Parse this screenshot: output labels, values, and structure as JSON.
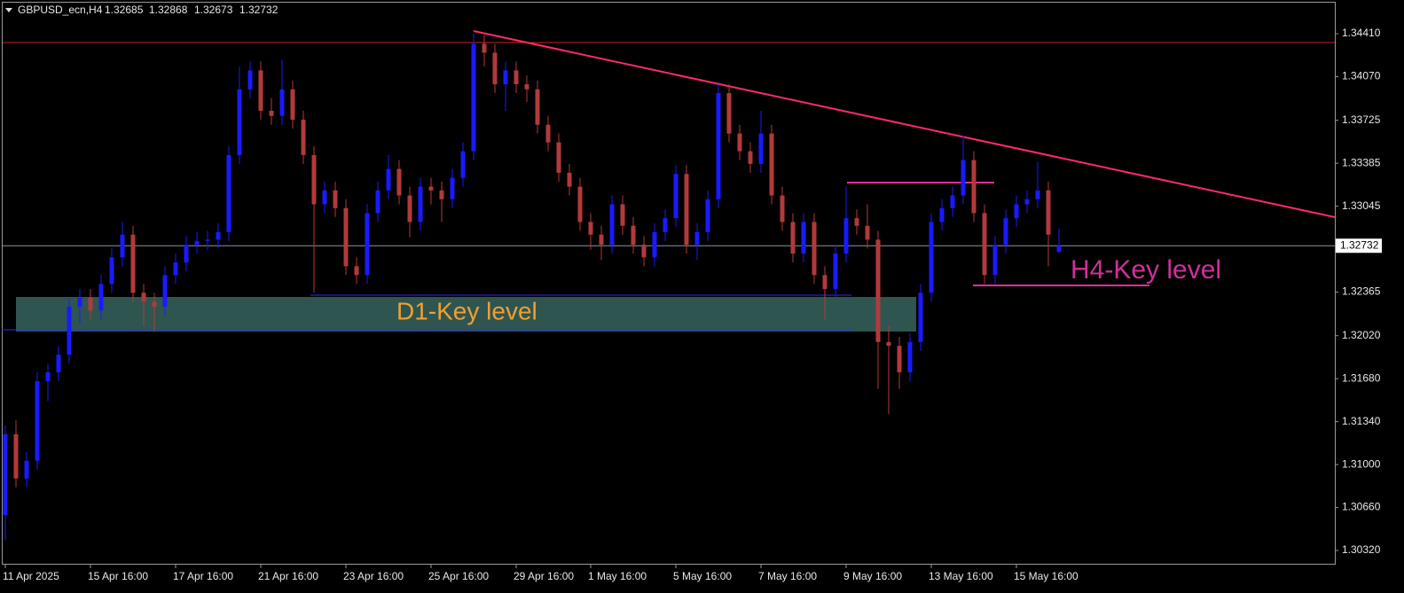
{
  "chart_data": {
    "type": "candlestick",
    "title": "GBPUSD_ecn,H4",
    "header_values": [
      1.32685,
      1.32868,
      1.32673,
      1.32732
    ],
    "current_price": {
      "value": 1.32732,
      "label": "1.32732"
    },
    "annotations": [
      "D1-Key level",
      "H4-Key level"
    ],
    "up_color": "#1a1aff",
    "down_color": "#b23a3a",
    "ylim": [
      1.30208,
      1.34663
    ],
    "yticks": [
      {
        "value": 1.3441,
        "label": "1.34410"
      },
      {
        "value": 1.3407,
        "label": "1.34070"
      },
      1.33725,
      1.33385,
      1.33045,
      1.32365,
      {
        "value": 1.3202,
        "label": "1.32020"
      },
      {
        "value": 1.3168,
        "label": "1.31680"
      },
      {
        "value": 1.3134,
        "label": "1.31340"
      },
      {
        "value": 1.31,
        "label": "1.31000"
      },
      {
        "value": 1.3066,
        "label": "1.30660"
      },
      {
        "value": 1.3032,
        "label": "1.30320"
      }
    ],
    "categories": [
      "11 Apr 2025",
      null,
      null,
      null,
      null,
      null,
      null,
      null,
      "15 Apr 16:00",
      null,
      null,
      null,
      null,
      null,
      null,
      null,
      "17 Apr 16:00",
      null,
      null,
      null,
      null,
      null,
      null,
      null,
      "21 Apr 16:00",
      null,
      null,
      null,
      null,
      null,
      null,
      null,
      "23 Apr 16:00",
      null,
      null,
      null,
      null,
      null,
      null,
      null,
      "25 Apr 16:00",
      null,
      null,
      null,
      null,
      null,
      null,
      null,
      "29 Apr 16:00",
      null,
      null,
      null,
      null,
      null,
      null,
      "1 May 16:00",
      null,
      null,
      null,
      null,
      null,
      null,
      null,
      "5 May 16:00",
      null,
      null,
      null,
      null,
      null,
      null,
      null,
      "7 May 16:00",
      null,
      null,
      null,
      null,
      null,
      null,
      null,
      "9 May 16:00",
      null,
      null,
      null,
      null,
      null,
      null,
      null,
      "13 May 16:00",
      null,
      null,
      null,
      null,
      null,
      null,
      null,
      "15 May 16:00",
      null,
      null,
      null,
      null
    ],
    "ohlc": [
      [
        1.306,
        1.3131,
        1.304,
        1.3124
      ],
      [
        1.3124,
        1.3135,
        1.3082,
        1.3089
      ],
      [
        1.3089,
        1.311,
        1.3082,
        1.3103
      ],
      [
        1.3103,
        1.3173,
        1.3096,
        1.3166
      ],
      [
        1.3166,
        1.318,
        1.315,
        1.3173
      ],
      [
        1.3173,
        1.3194,
        1.3166,
        1.3187
      ],
      [
        1.3187,
        1.3232,
        1.318,
        1.3225
      ],
      [
        1.3225,
        1.3239,
        1.3212,
        1.3232
      ],
      [
        1.3232,
        1.3239,
        1.3215,
        1.3222
      ],
      [
        1.3222,
        1.325,
        1.3215,
        1.3243
      ],
      [
        1.3243,
        1.3271,
        1.3236,
        1.3264
      ],
      [
        1.3264,
        1.3292,
        1.3257,
        1.3282
      ],
      [
        1.3282,
        1.3289,
        1.3229,
        1.3236
      ],
      [
        1.3236,
        1.3243,
        1.321,
        1.3229
      ],
      [
        1.3229,
        1.3236,
        1.3205,
        1.3225
      ],
      [
        1.3225,
        1.3257,
        1.3218,
        1.325
      ],
      [
        1.325,
        1.3267,
        1.3243,
        1.326
      ],
      [
        1.326,
        1.3281,
        1.3253,
        1.3274
      ],
      [
        1.3274,
        1.3284,
        1.3267,
        1.3277
      ],
      [
        1.3277,
        1.3285,
        1.327,
        1.3278
      ],
      [
        1.3278,
        1.3291,
        1.3271,
        1.3284
      ],
      [
        1.3284,
        1.3352,
        1.3277,
        1.3345
      ],
      [
        1.3345,
        1.3415,
        1.3338,
        1.3397
      ],
      [
        1.3397,
        1.3419,
        1.339,
        1.3412
      ],
      [
        1.3412,
        1.3419,
        1.3373,
        1.338
      ],
      [
        1.338,
        1.339,
        1.3369,
        1.3376
      ],
      [
        1.3376,
        1.342,
        1.3369,
        1.3397
      ],
      [
        1.3397,
        1.3404,
        1.3366,
        1.3373
      ],
      [
        1.3373,
        1.338,
        1.3338,
        1.3345
      ],
      [
        1.3345,
        1.3352,
        1.3236,
        1.3306
      ],
      [
        1.3306,
        1.3324,
        1.3299,
        1.3317
      ],
      [
        1.3317,
        1.3324,
        1.3296,
        1.3303
      ],
      [
        1.3303,
        1.331,
        1.325,
        1.3257
      ],
      [
        1.3257,
        1.3264,
        1.3243,
        1.325
      ],
      [
        1.325,
        1.3306,
        1.3243,
        1.3299
      ],
      [
        1.3299,
        1.3324,
        1.3292,
        1.3317
      ],
      [
        1.3317,
        1.3345,
        1.331,
        1.3334
      ],
      [
        1.3334,
        1.3341,
        1.3306,
        1.3313
      ],
      [
        1.3313,
        1.332,
        1.328,
        1.3292
      ],
      [
        1.3292,
        1.3327,
        1.3285,
        1.332
      ],
      [
        1.332,
        1.3327,
        1.3306,
        1.3317
      ],
      [
        1.3317,
        1.3324,
        1.3292,
        1.331
      ],
      [
        1.331,
        1.3334,
        1.3303,
        1.3327
      ],
      [
        1.3327,
        1.3355,
        1.332,
        1.3348
      ],
      [
        1.3348,
        1.3441,
        1.3341,
        1.3433
      ],
      [
        1.3433,
        1.344,
        1.3415,
        1.3426
      ],
      [
        1.3426,
        1.3433,
        1.3394,
        1.3401
      ],
      [
        1.3401,
        1.3419,
        1.338,
        1.3412
      ],
      [
        1.3412,
        1.3419,
        1.3394,
        1.3401
      ],
      [
        1.3401,
        1.3408,
        1.3387,
        1.3397
      ],
      [
        1.3397,
        1.3404,
        1.3362,
        1.3369
      ],
      [
        1.3369,
        1.3376,
        1.3348,
        1.3355
      ],
      [
        1.3355,
        1.3362,
        1.3324,
        1.3331
      ],
      [
        1.3331,
        1.3338,
        1.3313,
        1.332
      ],
      [
        1.332,
        1.3327,
        1.3285,
        1.3292
      ],
      [
        1.3292,
        1.3299,
        1.327,
        1.3282
      ],
      [
        1.3282,
        1.3289,
        1.3262,
        1.3274
      ],
      [
        1.3274,
        1.3313,
        1.3267,
        1.3306
      ],
      [
        1.3306,
        1.3313,
        1.3282,
        1.3289
      ],
      [
        1.3289,
        1.3296,
        1.3267,
        1.3274
      ],
      [
        1.3274,
        1.3281,
        1.3257,
        1.3264
      ],
      [
        1.3264,
        1.3291,
        1.3257,
        1.3284
      ],
      [
        1.3284,
        1.3302,
        1.3277,
        1.3295
      ],
      [
        1.3295,
        1.3337,
        1.3288,
        1.333
      ],
      [
        1.333,
        1.3337,
        1.3267,
        1.3274
      ],
      [
        1.3274,
        1.3291,
        1.3262,
        1.3284
      ],
      [
        1.3284,
        1.3317,
        1.3277,
        1.331
      ],
      [
        1.331,
        1.3401,
        1.3303,
        1.3394
      ],
      [
        1.3394,
        1.3401,
        1.3355,
        1.3362
      ],
      [
        1.3362,
        1.3369,
        1.3341,
        1.3348
      ],
      [
        1.3348,
        1.3355,
        1.3331,
        1.3338
      ],
      [
        1.3338,
        1.338,
        1.3331,
        1.3362
      ],
      [
        1.3362,
        1.3369,
        1.3306,
        1.3313
      ],
      [
        1.3313,
        1.332,
        1.3285,
        1.3292
      ],
      [
        1.3292,
        1.3299,
        1.326,
        1.3267
      ],
      [
        1.3267,
        1.3299,
        1.326,
        1.3292
      ],
      [
        1.3292,
        1.3299,
        1.3243,
        1.325
      ],
      [
        1.325,
        1.3257,
        1.3215,
        1.3239
      ],
      [
        1.3239,
        1.3274,
        1.3232,
        1.3267
      ],
      [
        1.3267,
        1.332,
        1.326,
        1.3295
      ],
      [
        1.3295,
        1.3302,
        1.3282,
        1.3289
      ],
      [
        1.3289,
        1.3306,
        1.3271,
        1.3278
      ],
      [
        1.3278,
        1.3285,
        1.316,
        1.3197
      ],
      [
        1.3197,
        1.321,
        1.314,
        1.3194
      ],
      [
        1.3194,
        1.3201,
        1.316,
        1.3173
      ],
      [
        1.3173,
        1.3204,
        1.3166,
        1.3197
      ],
      [
        1.3197,
        1.3243,
        1.319,
        1.3236
      ],
      [
        1.3236,
        1.3299,
        1.3229,
        1.3292
      ],
      [
        1.3292,
        1.331,
        1.3285,
        1.3303
      ],
      [
        1.3303,
        1.332,
        1.3296,
        1.3313
      ],
      [
        1.3313,
        1.336,
        1.3306,
        1.3341
      ],
      [
        1.3341,
        1.3348,
        1.3292,
        1.3299
      ],
      [
        1.3299,
        1.3306,
        1.3243,
        1.325
      ],
      [
        1.325,
        1.3281,
        1.3243,
        1.3274
      ],
      [
        1.3274,
        1.3302,
        1.3267,
        1.3295
      ],
      [
        1.3295,
        1.3313,
        1.3288,
        1.3306
      ],
      [
        1.3306,
        1.3317,
        1.3299,
        1.331
      ],
      [
        1.331,
        1.334,
        1.3303,
        1.3317
      ],
      [
        1.3317,
        1.3324,
        1.3257,
        1.3282
      ],
      [
        1.32685,
        1.32868,
        1.32673,
        1.32732
      ]
    ]
  }
}
